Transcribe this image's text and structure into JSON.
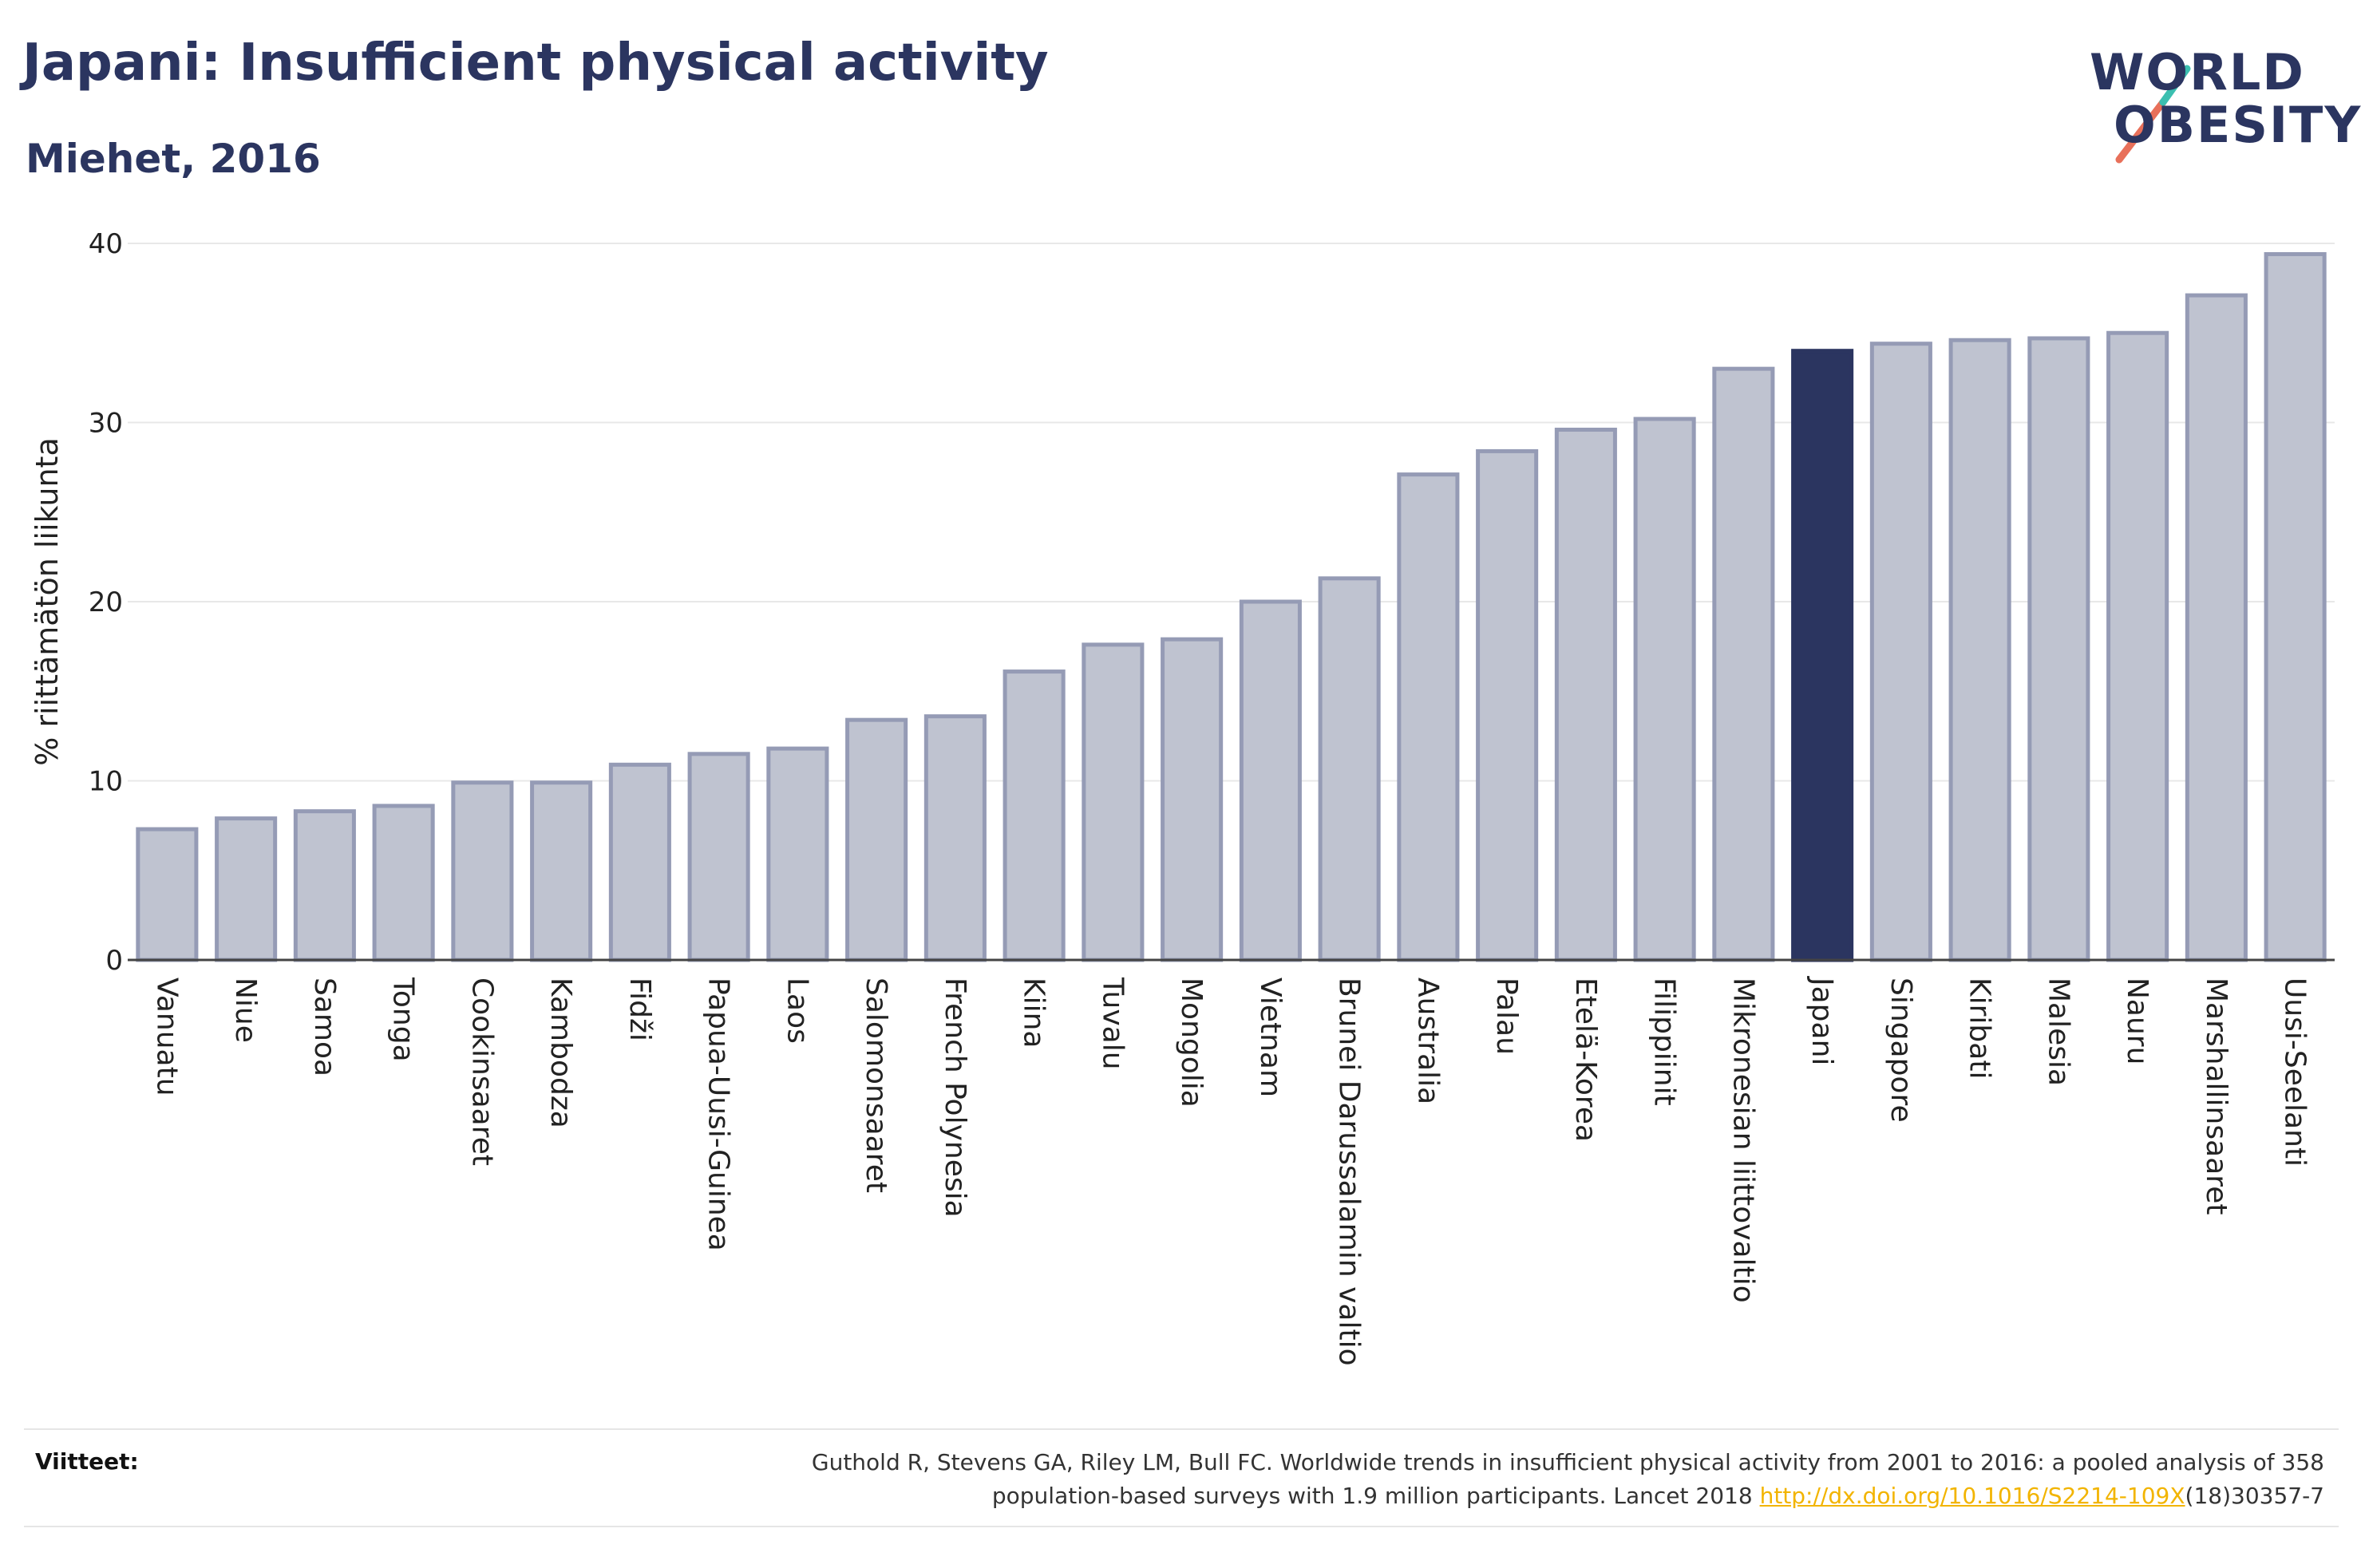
{
  "title": "Japani: Insufficient physical activity",
  "subtitle": "Miehet, 2016",
  "logo": {
    "line1": "WORLD",
    "line2": "OBESITY"
  },
  "colors": {
    "bar": "#bfc3d0",
    "bar_border": "#959bb5",
    "highlight": "#2b3560",
    "title": "#2b3560",
    "link": "#f2b400"
  },
  "chart_data": {
    "type": "bar",
    "ylabel": "% riittämätön liikunta",
    "ylim": [
      0,
      40
    ],
    "yticks": [
      0,
      10,
      20,
      30,
      40
    ],
    "grid": true,
    "highlight": "Japani",
    "categories": [
      "Vanuatu",
      "Niue",
      "Samoa",
      "Tonga",
      "Cookinsaaret",
      "Kambodza",
      "Fidži",
      "Papua-Uusi-Guinea",
      "Laos",
      "Salomonsaaret",
      "French Polynesia",
      "Kiina",
      "Tuvalu",
      "Mongolia",
      "Vietnam",
      "Brunei Darussalamin valtio",
      "Australia",
      "Palau",
      "Etelä-Korea",
      "Filippiinit",
      "Mikronesian liittovaltio",
      "Japani",
      "Singapore",
      "Kiribati",
      "Malesia",
      "Nauru",
      "Marshallinsaaret",
      "Uusi-Seelanti"
    ],
    "values": [
      7.3,
      7.9,
      8.3,
      8.6,
      9.9,
      9.9,
      10.9,
      11.5,
      11.8,
      13.4,
      13.6,
      16.1,
      17.6,
      17.9,
      20.0,
      21.3,
      27.1,
      28.4,
      29.6,
      30.2,
      33.0,
      34.0,
      34.4,
      34.6,
      34.7,
      35.0,
      37.1,
      39.4
    ]
  },
  "references": {
    "label": "Viitteet:",
    "line1": "Guthold R, Stevens GA, Riley LM, Bull FC. Worldwide trends in insufficient physical activity from 2001 to 2016: a pooled analysis of 358",
    "line2_pre": "population-based surveys with 1.9 million participants. Lancet 2018 ",
    "link": "http://dx.doi.org/10.1016/S2214-109X",
    "line2_post": "(18)30357-7"
  }
}
